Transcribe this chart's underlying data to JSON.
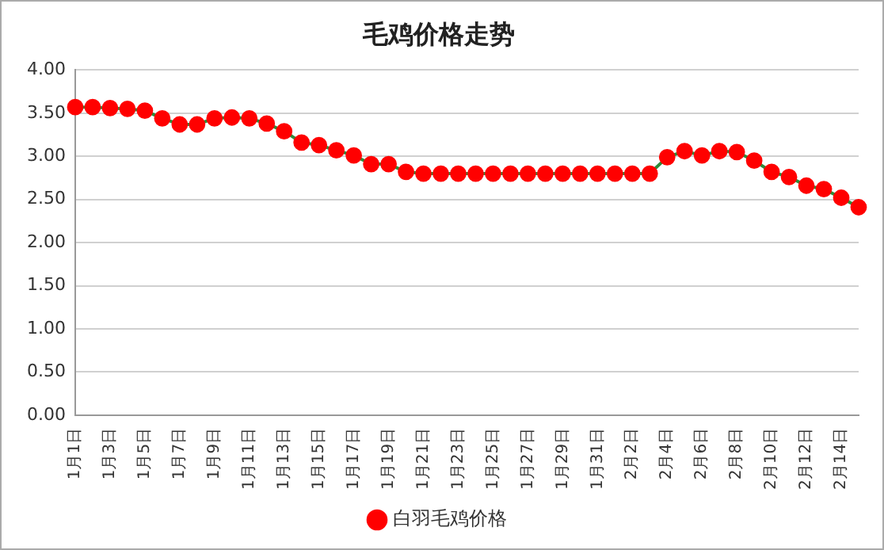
{
  "chart_data": {
    "type": "line",
    "title": "毛鸡价格走势",
    "categories": [
      "1月1日",
      null,
      "1月3日",
      null,
      "1月5日",
      null,
      "1月7日",
      null,
      "1月9日",
      null,
      "1月11日",
      null,
      "1月13日",
      null,
      "1月15日",
      null,
      "1月17日",
      null,
      "1月19日",
      null,
      "1月21日",
      null,
      "1月23日",
      null,
      "1月25日",
      null,
      "1月27日",
      null,
      "1月29日",
      null,
      "1月31日",
      null,
      "2月2日",
      null,
      "2月4日",
      null,
      "2月6日",
      null,
      "2月8日",
      null,
      "2月10日",
      null,
      "2月12日",
      null,
      "2月14日",
      null
    ],
    "series": [
      {
        "name": "白羽毛鸡价格",
        "color": "#ff0000",
        "values": [
          3.57,
          3.57,
          3.56,
          3.55,
          3.53,
          3.44,
          3.37,
          3.37,
          3.44,
          3.45,
          3.44,
          3.38,
          3.29,
          3.16,
          3.13,
          3.07,
          3.01,
          2.91,
          2.91,
          2.82,
          2.8,
          2.8,
          2.8,
          2.8,
          2.8,
          2.8,
          2.8,
          2.8,
          2.8,
          2.8,
          2.8,
          2.8,
          2.8,
          2.8,
          2.99,
          3.06,
          3.01,
          3.06,
          3.05,
          2.95,
          2.82,
          2.76,
          2.66,
          2.62,
          2.52,
          2.41
        ]
      }
    ],
    "ylim": [
      0,
      4
    ],
    "yticks": [
      {
        "value": 0,
        "label": "0.00"
      },
      {
        "value": 0.5,
        "label": "0.50"
      },
      {
        "value": 1,
        "label": "1.00"
      },
      {
        "value": 1.5,
        "label": "1.50"
      },
      {
        "value": 2,
        "label": "2.00"
      },
      {
        "value": 2.5,
        "label": "2.50"
      },
      {
        "value": 3,
        "label": "3.00"
      },
      {
        "value": 3.5,
        "label": "3.50"
      },
      {
        "value": 4,
        "label": "4.00"
      }
    ],
    "grid": "y",
    "legend": "bottom",
    "marker": "circle",
    "line_style": "solid"
  }
}
